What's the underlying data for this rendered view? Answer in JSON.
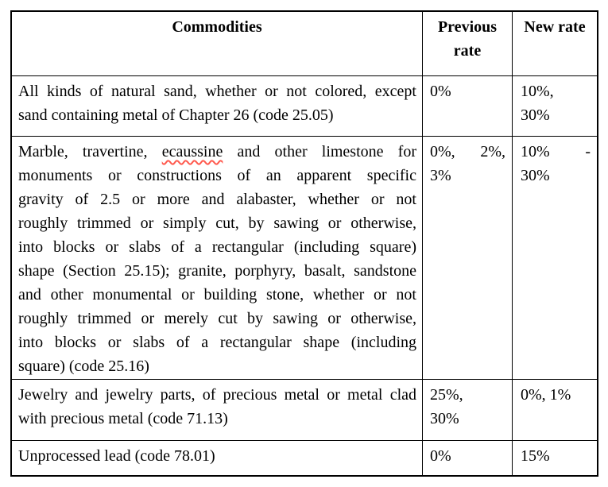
{
  "table": {
    "headers": {
      "commodities": "Commodities",
      "previous_rate": "Previous rate",
      "new_rate": "New rate"
    },
    "rows": [
      {
        "commodity": {
          "full": "All kinds of natural sand, whether or not colored, except sand containing metal of Chapter 26 (code 25.05)",
          "lines": [
            "All kinds of natural sand, whether or not colored, except",
            "sand containing metal of Chapter 26 (code 25.05)"
          ]
        },
        "previous_rate": {
          "full": "0%",
          "lines": [
            "0%"
          ]
        },
        "new_rate": {
          "full": "10%, 30%",
          "lines": [
            "10%,",
            "30%"
          ]
        }
      },
      {
        "commodity": {
          "full": "Marble, travertine, ecaussine and other limestone for monuments or constructions of an apparent specific gravity of 2.5 or more and alabaster, whether or not roughly trimmed or simply cut, by sawing or otherwise, into blocks or slabs of a rectangular (including square) shape (Section 25.15); granite, porphyry, basalt, sandstone and other monumental or building stone, whether or not roughly trimmed or merely cut by sawing or otherwise, into blocks or slabs of a rectangular shape (including square) (code 25.16)",
          "line1_before": "Marble, travertine, ",
          "line1_misspelled": "ecaussine",
          "line1_after": " and other limestone for",
          "lines_rest": [
            "monuments or constructions of an apparent specific",
            "gravity of 2.5 or more and alabaster, whether or not",
            "roughly trimmed or simply cut, by sawing or otherwise,",
            "into blocks or slabs of a rectangular (including square)",
            "shape (Section 25.15); granite, porphyry, basalt, sandstone",
            "and other monumental or building stone, whether or not",
            "roughly trimmed or merely cut by sawing or otherwise,",
            "into blocks or slabs of a rectangular shape (including",
            "square) (code 25.16)"
          ]
        },
        "previous_rate": {
          "full": "0%, 2%, 3%",
          "lines": [
            "0%, 2%,",
            "3%"
          ]
        },
        "new_rate": {
          "full": "10% - 30%",
          "lines": [
            "10% -",
            "30%"
          ]
        }
      },
      {
        "commodity": {
          "full": "Jewelry and jewelry parts, of precious metal or metal clad with precious metal (code 71.13)",
          "lines": [
            "Jewelry and jewelry parts, of precious metal or metal clad",
            "with precious metal (code 71.13)"
          ]
        },
        "previous_rate": {
          "full": "25%, 30%",
          "lines": [
            "25%,",
            "30%"
          ]
        },
        "new_rate": {
          "full": "0%, 1%",
          "lines": [
            "0%, 1%"
          ]
        }
      },
      {
        "commodity": {
          "full": "Unprocessed lead (code 78.01)",
          "lines": [
            "Unprocessed lead (code 78.01)"
          ]
        },
        "previous_rate": {
          "full": "0%",
          "lines": [
            "0%"
          ]
        },
        "new_rate": {
          "full": "15%",
          "lines": [
            "15%"
          ]
        }
      }
    ]
  },
  "colors": {
    "border": "#000000",
    "text": "#000000",
    "background": "#ffffff",
    "spellcheck_underline": "#ff5a4e"
  }
}
